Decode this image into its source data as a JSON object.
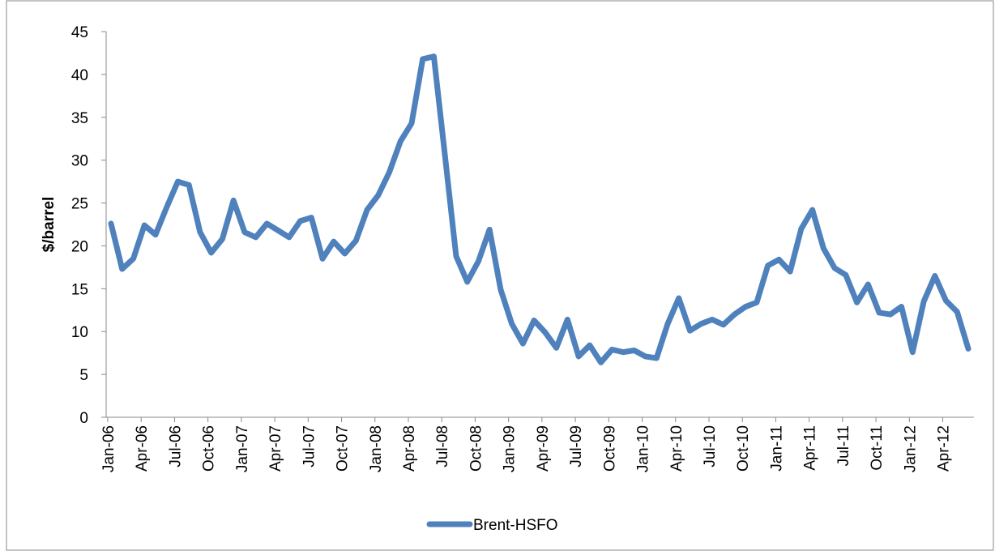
{
  "chart_data": {
    "type": "line",
    "y_label": "$/barrel",
    "categories": [
      "Jan-06",
      null,
      null,
      "Apr-06",
      null,
      null,
      "Jul-06",
      null,
      null,
      "Oct-06",
      null,
      null,
      "Jan-07",
      null,
      null,
      "Apr-07",
      null,
      null,
      "Jul-07",
      null,
      null,
      "Oct-07",
      null,
      null,
      "Jan-08",
      null,
      null,
      "Apr-08",
      null,
      null,
      "Jul-08",
      null,
      null,
      "Oct-08",
      null,
      null,
      "Jan-09",
      null,
      null,
      "Apr-09",
      null,
      null,
      "Jul-09",
      null,
      null,
      "Oct-09",
      null,
      null,
      "Jan-10",
      null,
      null,
      "Apr-10",
      null,
      null,
      "Jul-10",
      null,
      null,
      "Oct-10",
      null,
      null,
      "Jan-11",
      null,
      null,
      "Apr-11",
      null,
      null,
      "Jul-11",
      null,
      null,
      "Oct-11",
      null,
      null,
      "Jan-12",
      null,
      null,
      "Apr-12",
      null,
      null
    ],
    "series": [
      {
        "name": "Brent-HSFO",
        "color": "#4f81bd",
        "values": [
          22.6,
          17.3,
          18.5,
          22.4,
          21.3,
          24.5,
          27.5,
          27.1,
          21.6,
          19.2,
          20.8,
          25.3,
          21.6,
          21.0,
          22.6,
          21.8,
          21.0,
          22.9,
          23.3,
          18.5,
          20.5,
          19.1,
          20.6,
          24.2,
          25.9,
          28.6,
          32.2,
          34.3,
          41.8,
          42.1,
          30.5,
          18.8,
          15.8,
          18.2,
          21.9,
          14.9,
          10.9,
          8.6,
          11.3,
          9.9,
          8.1,
          11.4,
          7.1,
          8.4,
          6.4,
          7.9,
          7.6,
          7.8,
          7.1,
          6.9,
          10.9,
          13.9,
          10.1,
          10.9,
          11.4,
          10.8,
          12.0,
          12.9,
          13.4,
          17.7,
          18.4,
          17.0,
          22.0,
          24.2,
          19.7,
          17.4,
          16.6,
          13.4,
          15.5,
          12.2,
          12.0,
          12.9,
          7.6,
          13.5,
          16.5,
          13.6,
          12.3,
          8.0
        ]
      }
    ],
    "ylim": [
      0,
      45
    ],
    "yticks": [
      0,
      5,
      10,
      15,
      20,
      25,
      30,
      35,
      40,
      45
    ],
    "grid": false,
    "legend": "bottom"
  }
}
